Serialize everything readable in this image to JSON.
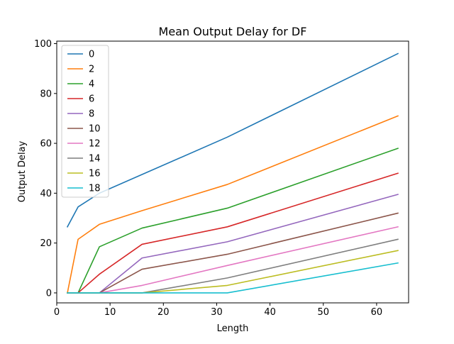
{
  "chart_data": {
    "type": "line",
    "title": "Mean Output Delay for DF",
    "xlabel": "Length",
    "ylabel": "Output Delay",
    "xlim": [
      0,
      66
    ],
    "ylim": [
      -4,
      101
    ],
    "xticks": [
      0,
      10,
      20,
      30,
      40,
      50,
      60
    ],
    "yticks": [
      0,
      20,
      40,
      60,
      80,
      100
    ],
    "grid": false,
    "legend_position": "top-left",
    "x": [
      2,
      4,
      8,
      16,
      32,
      64
    ],
    "series": [
      {
        "name": "0",
        "color": "#1f77b4",
        "values": [
          26.5,
          34.5,
          40.0,
          47.5,
          62.5,
          96.0
        ]
      },
      {
        "name": "2",
        "color": "#ff7f0e",
        "values": [
          0,
          21.5,
          27.5,
          33.0,
          43.5,
          71.0
        ]
      },
      {
        "name": "4",
        "color": "#2ca02c",
        "values": [
          0,
          0,
          18.5,
          26.0,
          34.0,
          58.0
        ]
      },
      {
        "name": "6",
        "color": "#d62728",
        "values": [
          0,
          0,
          7.5,
          19.5,
          26.5,
          48.0
        ]
      },
      {
        "name": "8",
        "color": "#9467bd",
        "values": [
          0,
          0,
          0,
          14.0,
          20.5,
          39.5
        ]
      },
      {
        "name": "10",
        "color": "#8c564b",
        "values": [
          0,
          0,
          0,
          9.5,
          15.5,
          32.0
        ]
      },
      {
        "name": "12",
        "color": "#e377c2",
        "values": [
          0,
          0,
          0,
          3.0,
          11.0,
          26.5
        ]
      },
      {
        "name": "14",
        "color": "#7f7f7f",
        "values": [
          0,
          0,
          0,
          0,
          6.0,
          21.5
        ]
      },
      {
        "name": "16",
        "color": "#bcbd22",
        "values": [
          0,
          0,
          0,
          0,
          3.0,
          17.0
        ]
      },
      {
        "name": "18",
        "color": "#17becf",
        "values": [
          0,
          0,
          0,
          0,
          0,
          12.0
        ]
      }
    ]
  }
}
